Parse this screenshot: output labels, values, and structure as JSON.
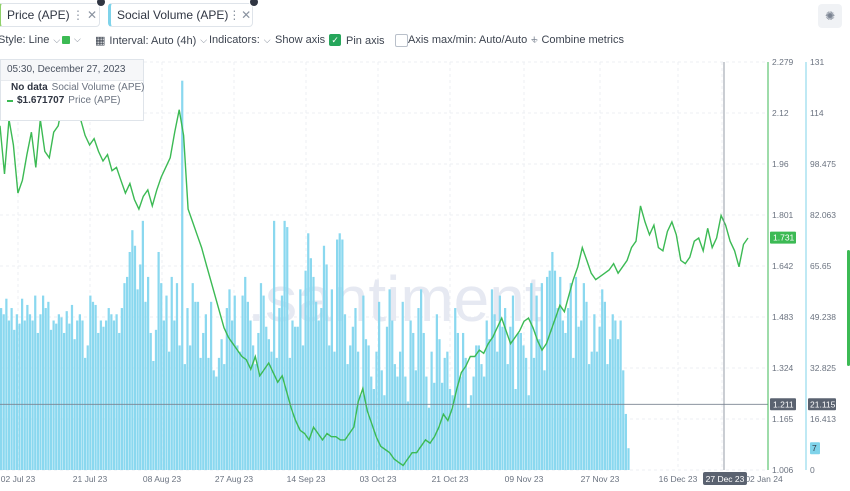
{
  "tabs": [
    {
      "label": "Price (APE)",
      "color": "#8fd06a"
    },
    {
      "label": "Social Volume (APE)",
      "color": "#7fd3ea"
    }
  ],
  "toolbar": {
    "style": "Style: Line",
    "interval": "Interval: Auto (4h)",
    "indicators": "Indicators:",
    "show_axis": "Show axis",
    "pin_axis": "Pin axis",
    "axis_maxmin": "Axis max/min: Auto/Auto",
    "combine": "Combine metrics"
  },
  "tooltip": {
    "date": "05:30, December 27, 2023",
    "social_value": "No data",
    "social_name": "Social Volume (APE)",
    "price_value": "$1.671707",
    "price_name": "Price (APE)"
  },
  "chart_data": {
    "type": "line",
    "watermark": ".santiment",
    "x_ticks": [
      "02 Jul 23",
      "21 Jul 23",
      "08 Aug 23",
      "27 Aug 23",
      "14 Sep 23",
      "03 Oct 23",
      "21 Oct 23",
      "09 Nov 23",
      "27 Nov 23",
      "16 Dec 23",
      "27 Dec 23",
      "02 Jan 24"
    ],
    "price_axis": {
      "ticks": [
        "2.279",
        "2.12",
        "1.96",
        "1.801",
        "1.642",
        "1.483",
        "1.324",
        "1.165",
        "1.006"
      ],
      "min": 1.006,
      "max": 2.279,
      "last_label": "1.731",
      "crosshair_label": "1.211",
      "color": "#3cba54"
    },
    "social_axis": {
      "ticks": [
        "131",
        "114",
        "98.475",
        "82.063",
        "65.65",
        "49.238",
        "32.825",
        "16.413",
        "0"
      ],
      "min": 0,
      "max": 131,
      "crosshair_label": "21.115",
      "last_label": "7",
      "color": "#7fd3ea"
    },
    "series": [
      {
        "name": "Price (APE)",
        "color": "#3cba54",
        "values": [
          2.08,
          1.93,
          2.1,
          2.02,
          1.87,
          1.91,
          1.99,
          2.06,
          1.95,
          2.1,
          2.0,
          1.98,
          2.06,
          2.08,
          2.15,
          2.18,
          2.14,
          2.18,
          2.1,
          2.05,
          2.02,
          2.04,
          2.0,
          1.97,
          1.99,
          1.94,
          1.95,
          1.91,
          1.87,
          1.9,
          1.85,
          1.82,
          1.86,
          1.88,
          1.83,
          1.88,
          1.92,
          1.95,
          1.98,
          2.06,
          2.13,
          2.05,
          1.82,
          1.78,
          1.74,
          1.7,
          1.65,
          1.6,
          1.55,
          1.5,
          1.45,
          1.42,
          1.4,
          1.38,
          1.36,
          1.35,
          1.32,
          1.36,
          1.3,
          1.32,
          1.34,
          1.31,
          1.28,
          1.3,
          1.25,
          1.2,
          1.16,
          1.13,
          1.12,
          1.1,
          1.14,
          1.12,
          1.1,
          1.12,
          1.11,
          1.11,
          1.1,
          1.1,
          1.12,
          1.14,
          1.22,
          1.26,
          1.19,
          1.15,
          1.11,
          1.08,
          1.07,
          1.06,
          1.04,
          1.03,
          1.02,
          1.04,
          1.06,
          1.06,
          1.08,
          1.1,
          1.09,
          1.11,
          1.14,
          1.18,
          1.16,
          1.2,
          1.26,
          1.31,
          1.33,
          1.36,
          1.36,
          1.38,
          1.37,
          1.4,
          1.42,
          1.45,
          1.48,
          1.44,
          1.4,
          1.42,
          1.44,
          1.47,
          1.48,
          1.45,
          1.41,
          1.38,
          1.4,
          1.44,
          1.48,
          1.52,
          1.5,
          1.55,
          1.6,
          1.64,
          1.7,
          1.66,
          1.62,
          1.6,
          1.61,
          1.62,
          1.63,
          1.65,
          1.62,
          1.64,
          1.66,
          1.7,
          1.72,
          1.83,
          1.78,
          1.74,
          1.77,
          1.7,
          1.69,
          1.75,
          1.78,
          1.74,
          1.66,
          1.65,
          1.67,
          1.72,
          1.73,
          1.69,
          1.76,
          1.7,
          1.73,
          1.8,
          1.77,
          1.72,
          1.69,
          1.64,
          1.71,
          1.73
        ]
      },
      {
        "name": "Social Volume (APE)",
        "color": "#8ad8ef",
        "values": [
          52,
          50,
          55,
          48,
          52,
          45,
          50,
          47,
          55,
          48,
          53,
          50,
          48,
          56,
          44,
          50,
          56,
          52,
          54,
          45,
          48,
          47,
          50,
          49,
          44,
          51,
          47,
          53,
          42,
          48,
          50,
          48,
          36,
          40,
          56,
          54,
          53,
          44,
          48,
          46,
          48,
          52,
          50,
          48,
          50,
          44,
          52,
          60,
          62,
          70,
          77,
          72,
          58,
          66,
          80,
          54,
          62,
          44,
          35,
          45,
          70,
          60,
          48,
          56,
          38,
          62,
          48,
          60,
          40,
          125,
          34,
          52,
          40,
          60,
          54,
          54,
          36,
          44,
          50,
          36,
          54,
          32,
          30,
          36,
          42,
          34,
          52,
          58,
          48,
          56,
          40,
          38,
          56,
          62,
          54,
          48,
          40,
          34,
          44,
          60,
          56,
          46,
          42,
          38,
          80,
          36,
          52,
          56,
          80,
          78,
          36,
          48,
          46,
          46,
          58,
          40,
          64,
          76,
          68,
          62,
          54,
          48,
          52,
          72,
          66,
          40,
          58,
          38,
          74,
          76,
          74,
          50,
          34,
          40,
          46,
          52,
          38,
          24,
          56,
          42,
          40,
          30,
          26,
          38,
          54,
          32,
          24,
          46,
          58,
          48,
          34,
          30,
          38,
          54,
          30,
          22,
          48,
          44,
          32,
          52,
          58,
          44,
          30,
          20,
          38,
          28,
          50,
          42,
          28,
          36,
          38,
          26,
          24,
          52,
          44,
          30,
          44,
          36,
          20,
          24,
          30,
          40,
          40,
          34,
          30,
          48,
          42,
          58,
          50,
          38,
          56,
          46,
          52,
          34,
          46,
          56,
          26,
          44,
          44,
          40,
          36,
          24,
          60,
          36,
          56,
          42,
          60,
          32,
          62,
          64,
          70,
          64,
          52,
          62,
          48,
          44,
          52,
          60,
          36,
          62,
          46,
          48,
          60,
          54,
          34,
          38,
          50,
          38,
          46,
          58,
          54,
          34,
          42,
          50,
          48,
          42,
          48,
          32,
          18,
          7
        ]
      }
    ]
  }
}
